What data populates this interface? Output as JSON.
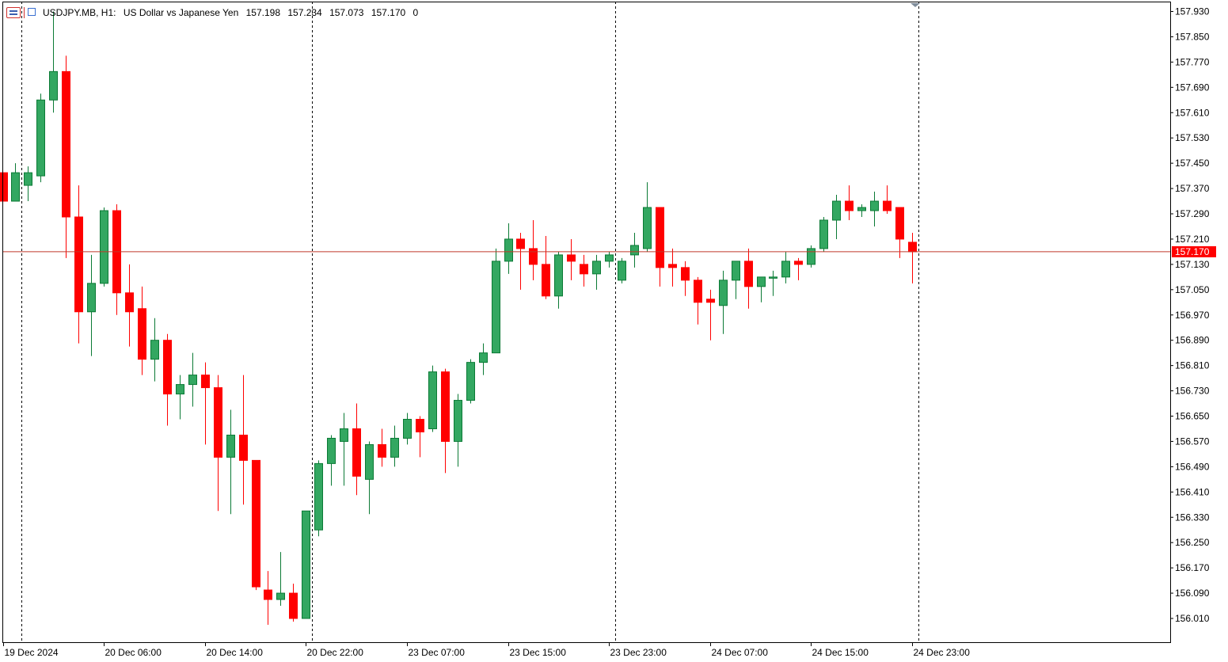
{
  "header": {
    "symbol": "USDJPY.MB, H1:",
    "description": "US Dollar vs Japanese Yen",
    "open": "157.198",
    "high": "157.234",
    "low": "157.073",
    "close": "157.170",
    "volume": "0",
    "icons": [
      "quick-list-icon",
      "indicators-icon"
    ]
  },
  "colors": {
    "bull": "#33a761",
    "bear": "#ff0000",
    "wick_bull": "#0b7a35",
    "price_line": "#c0392b",
    "price_label_bg": "#ff0000",
    "grid_separator": "#000000"
  },
  "chart_data": {
    "type": "candlestick",
    "title": "",
    "ylim": [
      155.97,
      157.95
    ],
    "y_ticks": [
      "157.930",
      "157.850",
      "157.770",
      "157.690",
      "157.610",
      "157.530",
      "157.450",
      "157.370",
      "157.290",
      "157.210",
      "157.130",
      "157.050",
      "156.970",
      "156.890",
      "156.810",
      "156.730",
      "156.650",
      "156.570",
      "156.490",
      "156.410",
      "156.330",
      "156.250",
      "156.170",
      "156.090",
      "156.010"
    ],
    "x_labels": [
      "19 Dec 2024",
      "20 Dec 06:00",
      "20 Dec 14:00",
      "20 Dec 22:00",
      "23 Dec 07:00",
      "23 Dec 15:00",
      "23 Dec 23:00",
      "24 Dec 07:00",
      "24 Dec 15:00",
      "24 Dec 23:00"
    ],
    "day_separators": [
      1.5,
      24.5,
      48.5,
      72.5
    ],
    "current_price": "157.170",
    "candles": [
      {
        "o": 157.42,
        "h": 157.42,
        "l": 157.33,
        "c": 157.33
      },
      {
        "o": 157.33,
        "h": 157.45,
        "l": 157.33,
        "c": 157.42
      },
      {
        "o": 157.38,
        "h": 157.44,
        "l": 157.33,
        "c": 157.42
      },
      {
        "o": 157.41,
        "h": 157.67,
        "l": 157.39,
        "c": 157.65
      },
      {
        "o": 157.65,
        "h": 157.93,
        "l": 157.61,
        "c": 157.74
      },
      {
        "o": 157.74,
        "h": 157.79,
        "l": 157.15,
        "c": 157.28
      },
      {
        "o": 157.28,
        "h": 157.38,
        "l": 156.88,
        "c": 156.98
      },
      {
        "o": 156.98,
        "h": 157.16,
        "l": 156.84,
        "c": 157.07
      },
      {
        "o": 157.07,
        "h": 157.31,
        "l": 157.06,
        "c": 157.3
      },
      {
        "o": 157.3,
        "h": 157.32,
        "l": 156.97,
        "c": 157.04
      },
      {
        "o": 157.04,
        "h": 157.13,
        "l": 156.87,
        "c": 156.98
      },
      {
        "o": 156.99,
        "h": 157.06,
        "l": 156.78,
        "c": 156.83
      },
      {
        "o": 156.83,
        "h": 156.96,
        "l": 156.76,
        "c": 156.89
      },
      {
        "o": 156.89,
        "h": 156.91,
        "l": 156.62,
        "c": 156.72
      },
      {
        "o": 156.72,
        "h": 156.78,
        "l": 156.64,
        "c": 156.75
      },
      {
        "o": 156.75,
        "h": 156.85,
        "l": 156.68,
        "c": 156.78
      },
      {
        "o": 156.78,
        "h": 156.82,
        "l": 156.56,
        "c": 156.74
      },
      {
        "o": 156.74,
        "h": 156.78,
        "l": 156.35,
        "c": 156.52
      },
      {
        "o": 156.52,
        "h": 156.67,
        "l": 156.34,
        "c": 156.59
      },
      {
        "o": 156.59,
        "h": 156.78,
        "l": 156.37,
        "c": 156.51
      },
      {
        "o": 156.51,
        "h": 156.51,
        "l": 156.1,
        "c": 156.11
      },
      {
        "o": 156.1,
        "h": 156.16,
        "l": 155.99,
        "c": 156.07
      },
      {
        "o": 156.07,
        "h": 156.22,
        "l": 156.05,
        "c": 156.09
      },
      {
        "o": 156.09,
        "h": 156.12,
        "l": 156.0,
        "c": 156.01
      },
      {
        "o": 156.01,
        "h": 156.35,
        "l": 156.01,
        "c": 156.35
      },
      {
        "o": 156.29,
        "h": 156.51,
        "l": 156.27,
        "c": 156.5
      },
      {
        "o": 156.5,
        "h": 156.59,
        "l": 156.43,
        "c": 156.58
      },
      {
        "o": 156.57,
        "h": 156.66,
        "l": 156.43,
        "c": 156.61
      },
      {
        "o": 156.61,
        "h": 156.69,
        "l": 156.4,
        "c": 156.46
      },
      {
        "o": 156.45,
        "h": 156.57,
        "l": 156.34,
        "c": 156.56
      },
      {
        "o": 156.56,
        "h": 156.61,
        "l": 156.49,
        "c": 156.52
      },
      {
        "o": 156.52,
        "h": 156.62,
        "l": 156.49,
        "c": 156.58
      },
      {
        "o": 156.58,
        "h": 156.66,
        "l": 156.56,
        "c": 156.64
      },
      {
        "o": 156.64,
        "h": 156.65,
        "l": 156.52,
        "c": 156.6
      },
      {
        "o": 156.61,
        "h": 156.81,
        "l": 156.6,
        "c": 156.79
      },
      {
        "o": 156.79,
        "h": 156.8,
        "l": 156.47,
        "c": 156.57
      },
      {
        "o": 156.57,
        "h": 156.72,
        "l": 156.49,
        "c": 156.7
      },
      {
        "o": 156.7,
        "h": 156.83,
        "l": 156.69,
        "c": 156.82
      },
      {
        "o": 156.82,
        "h": 156.88,
        "l": 156.78,
        "c": 156.85
      },
      {
        "o": 156.85,
        "h": 157.18,
        "l": 156.85,
        "c": 157.14
      },
      {
        "o": 157.14,
        "h": 157.26,
        "l": 157.1,
        "c": 157.21
      },
      {
        "o": 157.21,
        "h": 157.23,
        "l": 157.05,
        "c": 157.18
      },
      {
        "o": 157.18,
        "h": 157.27,
        "l": 157.08,
        "c": 157.13
      },
      {
        "o": 157.13,
        "h": 157.22,
        "l": 157.02,
        "c": 157.03
      },
      {
        "o": 157.03,
        "h": 157.17,
        "l": 156.99,
        "c": 157.16
      },
      {
        "o": 157.16,
        "h": 157.21,
        "l": 157.08,
        "c": 157.14
      },
      {
        "o": 157.13,
        "h": 157.16,
        "l": 157.06,
        "c": 157.1
      },
      {
        "o": 157.1,
        "h": 157.16,
        "l": 157.05,
        "c": 157.14
      },
      {
        "o": 157.14,
        "h": 157.17,
        "l": 157.12,
        "c": 157.16
      },
      {
        "o": 157.08,
        "h": 157.15,
        "l": 157.07,
        "c": 157.14
      },
      {
        "o": 157.16,
        "h": 157.23,
        "l": 157.12,
        "c": 157.19
      },
      {
        "o": 157.18,
        "h": 157.39,
        "l": 157.17,
        "c": 157.31
      },
      {
        "o": 157.31,
        "h": 157.31,
        "l": 157.06,
        "c": 157.12
      },
      {
        "o": 157.13,
        "h": 157.18,
        "l": 157.06,
        "c": 157.12
      },
      {
        "o": 157.12,
        "h": 157.14,
        "l": 157.03,
        "c": 157.08
      },
      {
        "o": 157.08,
        "h": 157.09,
        "l": 156.94,
        "c": 157.01
      },
      {
        "o": 157.02,
        "h": 157.05,
        "l": 156.89,
        "c": 157.01
      },
      {
        "o": 157.0,
        "h": 157.11,
        "l": 156.91,
        "c": 157.08
      },
      {
        "o": 157.08,
        "h": 157.14,
        "l": 157.02,
        "c": 157.14
      },
      {
        "o": 157.14,
        "h": 157.18,
        "l": 156.99,
        "c": 157.06
      },
      {
        "o": 157.06,
        "h": 157.09,
        "l": 157.01,
        "c": 157.09
      },
      {
        "o": 157.09,
        "h": 157.11,
        "l": 157.03,
        "c": 157.09
      },
      {
        "o": 157.09,
        "h": 157.17,
        "l": 157.07,
        "c": 157.14
      },
      {
        "o": 157.14,
        "h": 157.15,
        "l": 157.08,
        "c": 157.13
      },
      {
        "o": 157.13,
        "h": 157.19,
        "l": 157.12,
        "c": 157.18
      },
      {
        "o": 157.18,
        "h": 157.28,
        "l": 157.17,
        "c": 157.27
      },
      {
        "o": 157.27,
        "h": 157.35,
        "l": 157.21,
        "c": 157.33
      },
      {
        "o": 157.33,
        "h": 157.38,
        "l": 157.27,
        "c": 157.3
      },
      {
        "o": 157.3,
        "h": 157.32,
        "l": 157.28,
        "c": 157.31
      },
      {
        "o": 157.3,
        "h": 157.36,
        "l": 157.25,
        "c": 157.33
      },
      {
        "o": 157.33,
        "h": 157.38,
        "l": 157.29,
        "c": 157.3
      },
      {
        "o": 157.31,
        "h": 157.31,
        "l": 157.15,
        "c": 157.21
      },
      {
        "o": 157.2,
        "h": 157.23,
        "l": 157.07,
        "c": 157.17
      }
    ]
  }
}
